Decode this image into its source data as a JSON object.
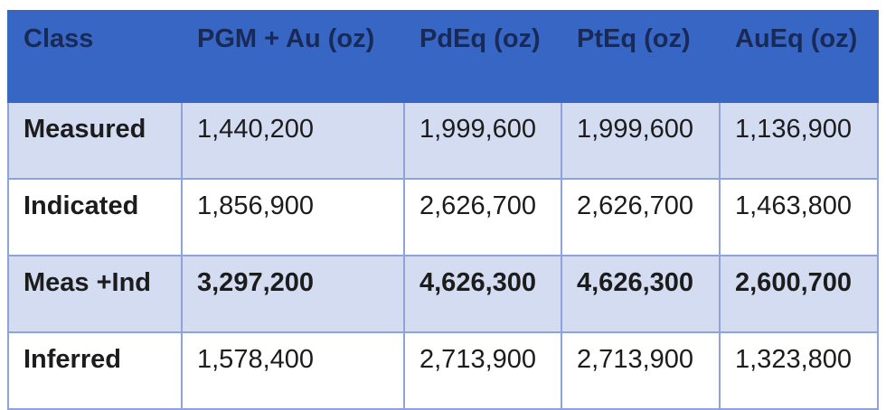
{
  "table": {
    "headers": [
      "Class",
      "PGM + Au (oz)",
      "PdEq (oz)",
      "PtEq (oz)",
      "AuEq (oz)"
    ],
    "rows": [
      {
        "cells": [
          "Measured",
          "1,440,200",
          "1,999,600",
          "1,999,600",
          "1,136,900"
        ]
      },
      {
        "cells": [
          "Indicated",
          "1,856,900",
          "2,626,700",
          "2,626,700",
          "1,463,800"
        ]
      },
      {
        "cells": [
          "Meas +Ind",
          "3,297,200",
          "4,626,300",
          "4,626,300",
          "2,600,700"
        ]
      },
      {
        "cells": [
          "Inferred",
          "1,578,400",
          "2,713,900",
          "2,713,900",
          "1,323,800"
        ]
      }
    ]
  },
  "colors": {
    "header_bg": "#3866c4",
    "header_text": "#182a55",
    "row_shade": "#d3dcf1",
    "grid": "#8ea2dc"
  }
}
